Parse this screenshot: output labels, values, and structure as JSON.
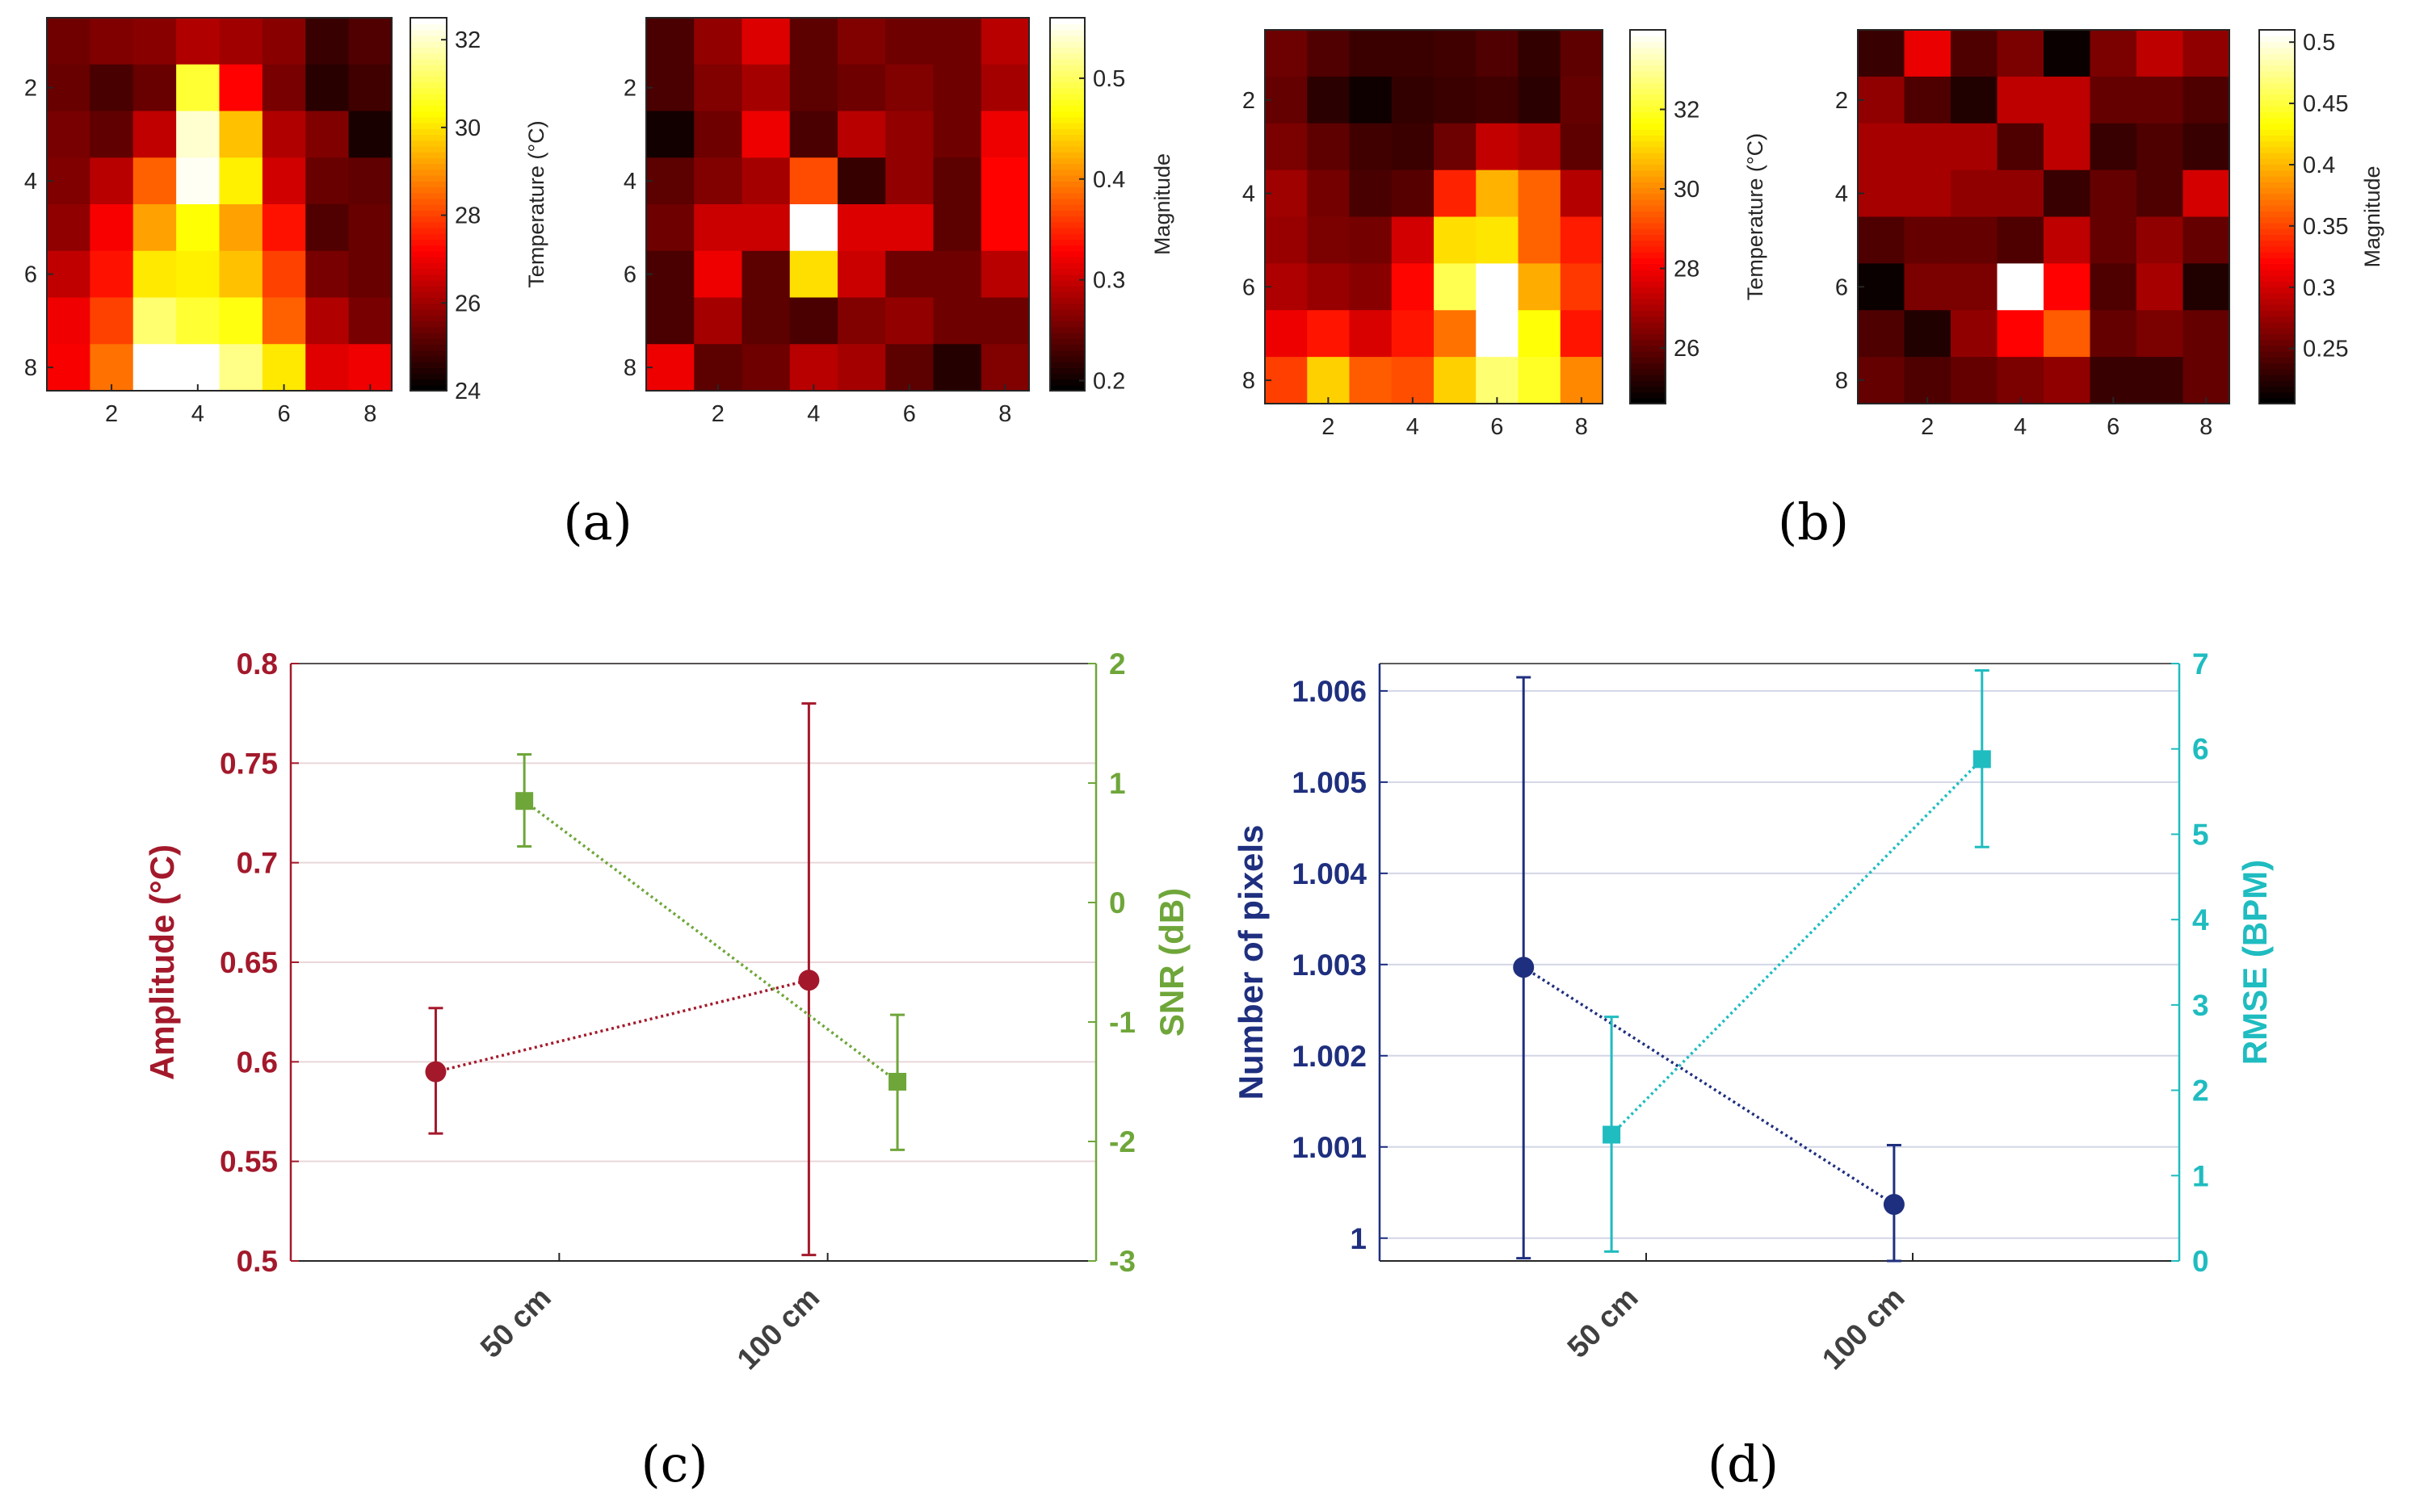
{
  "captions": {
    "a": "(a)",
    "b": "(b)",
    "c": "(c)",
    "d": "(d)"
  },
  "chart_data": [
    {
      "id": "hm1",
      "type": "heatmap",
      "panel": "a",
      "colormap": "hot",
      "zlim": [
        24,
        32.5
      ],
      "x_ticks": [
        2,
        4,
        6,
        8
      ],
      "y_ticks": [
        2,
        4,
        6,
        8
      ],
      "tick_labels": [
        "2",
        "4",
        "6",
        "8"
      ],
      "colorbar": {
        "label": "Temperature (°C)",
        "ticks": [
          24,
          26,
          28,
          30,
          32
        ],
        "tick_labels": [
          "24",
          "26",
          "28",
          "30",
          "32"
        ]
      },
      "values": [
        [
          25.4,
          25.6,
          25.7,
          26.2,
          26.0,
          25.7,
          24.7,
          25.0
        ],
        [
          25.3,
          24.9,
          25.3,
          30.8,
          27.2,
          25.5,
          24.5,
          24.8
        ],
        [
          25.5,
          25.2,
          26.4,
          32.1,
          29.6,
          26.2,
          25.6,
          24.3
        ],
        [
          25.6,
          26.3,
          28.4,
          32.4,
          30.2,
          26.6,
          25.3,
          25.2
        ],
        [
          25.8,
          27.1,
          29.2,
          30.4,
          29.2,
          27.4,
          25.0,
          25.3
        ],
        [
          26.4,
          27.4,
          30.1,
          30.2,
          29.6,
          28.0,
          25.5,
          25.3
        ],
        [
          27.0,
          28.0,
          31.3,
          30.8,
          30.5,
          28.4,
          26.2,
          25.5
        ],
        [
          27.1,
          28.6,
          32.5,
          32.5,
          31.5,
          30.1,
          26.8,
          27.0
        ]
      ]
    },
    {
      "id": "hm2",
      "type": "heatmap",
      "panel": "a",
      "colormap": "hot",
      "zlim": [
        0.19,
        0.56
      ],
      "x_ticks": [
        2,
        4,
        6,
        8
      ],
      "y_ticks": [
        2,
        4,
        6,
        8
      ],
      "tick_labels": [
        "2",
        "4",
        "6",
        "8"
      ],
      "colorbar": {
        "label": "Magnitude",
        "ticks": [
          0.2,
          0.3,
          0.4,
          0.5
        ],
        "tick_labels": [
          "0.2",
          "0.3",
          "0.4",
          "0.5"
        ]
      },
      "values": [
        [
          0.23,
          0.27,
          0.31,
          0.24,
          0.26,
          0.25,
          0.25,
          0.29
        ],
        [
          0.23,
          0.26,
          0.28,
          0.24,
          0.25,
          0.26,
          0.25,
          0.28
        ],
        [
          0.2,
          0.25,
          0.32,
          0.23,
          0.29,
          0.27,
          0.25,
          0.32
        ],
        [
          0.24,
          0.26,
          0.28,
          0.37,
          0.22,
          0.27,
          0.24,
          0.33
        ],
        [
          0.25,
          0.3,
          0.3,
          0.56,
          0.31,
          0.31,
          0.24,
          0.33
        ],
        [
          0.23,
          0.32,
          0.24,
          0.45,
          0.3,
          0.25,
          0.25,
          0.29
        ],
        [
          0.23,
          0.28,
          0.24,
          0.23,
          0.26,
          0.27,
          0.25,
          0.25
        ],
        [
          0.32,
          0.24,
          0.25,
          0.29,
          0.28,
          0.24,
          0.21,
          0.26
        ]
      ]
    },
    {
      "id": "hm3",
      "type": "heatmap",
      "panel": "b",
      "colormap": "hot",
      "zlim": [
        24.6,
        34.0
      ],
      "x_ticks": [
        2,
        4,
        6,
        8
      ],
      "y_ticks": [
        2,
        4,
        6,
        8
      ],
      "tick_labels": [
        "2",
        "4",
        "6",
        "8"
      ],
      "colorbar": {
        "label": "Temperature (°C)",
        "ticks": [
          26,
          28,
          30,
          32
        ],
        "tick_labels": [
          "26",
          "28",
          "30",
          "32"
        ]
      },
      "values": [
        [
          26.1,
          25.7,
          25.4,
          25.4,
          25.5,
          25.7,
          25.3,
          25.9
        ],
        [
          26.0,
          25.2,
          24.8,
          25.3,
          25.4,
          25.5,
          25.2,
          26.0
        ],
        [
          26.3,
          25.9,
          25.5,
          25.4,
          26.1,
          27.3,
          27.0,
          25.9
        ],
        [
          26.8,
          26.2,
          25.6,
          25.8,
          28.6,
          30.6,
          29.5,
          27.1
        ],
        [
          26.7,
          26.3,
          26.2,
          27.5,
          31.2,
          31.3,
          29.5,
          28.5
        ],
        [
          27.0,
          26.7,
          26.5,
          28.2,
          32.4,
          34.0,
          30.5,
          28.9
        ],
        [
          27.9,
          28.4,
          27.6,
          28.4,
          29.7,
          34.0,
          31.7,
          28.4
        ],
        [
          29.0,
          31.0,
          29.4,
          29.2,
          31.0,
          32.7,
          32.0,
          30.0
        ]
      ]
    },
    {
      "id": "hm4",
      "type": "heatmap",
      "panel": "b",
      "colormap": "hot",
      "zlim": [
        0.205,
        0.51
      ],
      "x_ticks": [
        2,
        4,
        6,
        8
      ],
      "y_ticks": [
        2,
        4,
        6,
        8
      ],
      "tick_labels": [
        "2",
        "4",
        "6",
        "8"
      ],
      "colorbar": {
        "label": "Magnitude",
        "ticks": [
          0.25,
          0.3,
          0.35,
          0.4,
          0.45,
          0.5
        ],
        "tick_labels": [
          "0.25",
          "0.3",
          "0.35",
          "0.4",
          "0.45",
          "0.5"
        ]
      },
      "values": [
        [
          0.23,
          0.31,
          0.24,
          0.26,
          0.21,
          0.26,
          0.29,
          0.27
        ],
        [
          0.27,
          0.24,
          0.22,
          0.29,
          0.29,
          0.25,
          0.25,
          0.24
        ],
        [
          0.28,
          0.28,
          0.28,
          0.24,
          0.29,
          0.23,
          0.24,
          0.23
        ],
        [
          0.28,
          0.28,
          0.27,
          0.27,
          0.23,
          0.25,
          0.24,
          0.3
        ],
        [
          0.24,
          0.25,
          0.25,
          0.24,
          0.29,
          0.25,
          0.27,
          0.25
        ],
        [
          0.21,
          0.26,
          0.26,
          0.51,
          0.32,
          0.24,
          0.28,
          0.22
        ],
        [
          0.24,
          0.22,
          0.27,
          0.32,
          0.36,
          0.25,
          0.26,
          0.25
        ],
        [
          0.25,
          0.24,
          0.25,
          0.26,
          0.27,
          0.23,
          0.23,
          0.25
        ]
      ]
    },
    {
      "id": "c",
      "type": "line",
      "panel": "c",
      "categories": [
        "50 cm",
        "100 cm"
      ],
      "xlim": [
        0,
        3
      ],
      "left_axis": {
        "label": "Amplitude (°C)",
        "color": "#a3192b",
        "ylim": [
          0.5,
          0.8
        ],
        "ticks": [
          0.5,
          0.55,
          0.6,
          0.65,
          0.7,
          0.75,
          0.8
        ],
        "tick_labels": [
          "0.5",
          "0.55",
          "0.6",
          "0.65",
          "0.7",
          "0.75",
          "0.8"
        ]
      },
      "right_axis": {
        "label": "SNR (dB)",
        "color": "#6fa63a",
        "ylim": [
          -3,
          2
        ],
        "ticks": [
          -3,
          -2,
          -1,
          0,
          1,
          2
        ],
        "tick_labels": [
          "-3",
          "-2",
          "-1",
          "0",
          "1",
          "2"
        ]
      },
      "series": [
        {
          "name": "Amplitude",
          "axis": "left",
          "marker": "circle",
          "color": "#a3192b",
          "x": [
            0.54,
            1.93
          ],
          "y": [
            0.595,
            0.641
          ],
          "err_low": [
            0.564,
            0.503
          ],
          "err_high": [
            0.627,
            0.78
          ]
        },
        {
          "name": "SNR",
          "axis": "right",
          "marker": "square",
          "color": "#6fa63a",
          "x": [
            0.87,
            2.26
          ],
          "y": [
            0.85,
            -1.5
          ],
          "err_low": [
            0.47,
            -2.07
          ],
          "err_high": [
            1.24,
            -0.94
          ]
        }
      ],
      "gridlines": "horizontal"
    },
    {
      "id": "d",
      "type": "line",
      "panel": "d",
      "categories": [
        "50 cm",
        "100 cm"
      ],
      "xlim": [
        0,
        3
      ],
      "left_axis": {
        "label": "Number of pixels",
        "color": "#1f2f7f",
        "ylim": [
          0.99975,
          1.0063
        ],
        "ticks": [
          1.0,
          1.001,
          1.002,
          1.003,
          1.004,
          1.005,
          1.006
        ],
        "tick_labels": [
          "1",
          "1.001",
          "1.002",
          "1.003",
          "1.004",
          "1.005",
          "1.006"
        ]
      },
      "right_axis": {
        "label": "RMSE (BPM)",
        "color": "#1fbcc0",
        "ylim": [
          0,
          7
        ],
        "ticks": [
          0,
          1,
          2,
          3,
          4,
          5,
          6,
          7
        ],
        "tick_labels": [
          "0",
          "1",
          "2",
          "3",
          "4",
          "5",
          "6",
          "7"
        ]
      },
      "series": [
        {
          "name": "Number of pixels",
          "axis": "left",
          "marker": "circle",
          "color": "#1f2f7f",
          "x": [
            0.54,
            1.93
          ],
          "y": [
            1.00297,
            1.00037
          ],
          "err_low": [
            0.99978,
            0.99975
          ],
          "err_high": [
            1.00615,
            1.00102
          ]
        },
        {
          "name": "RMSE",
          "axis": "right",
          "marker": "square",
          "color": "#1fbcc0",
          "x": [
            0.87,
            2.26
          ],
          "y": [
            1.48,
            5.88
          ],
          "err_low": [
            0.11,
            4.85
          ],
          "err_high": [
            2.86,
            6.92
          ]
        }
      ],
      "gridlines": "horizontal"
    }
  ]
}
